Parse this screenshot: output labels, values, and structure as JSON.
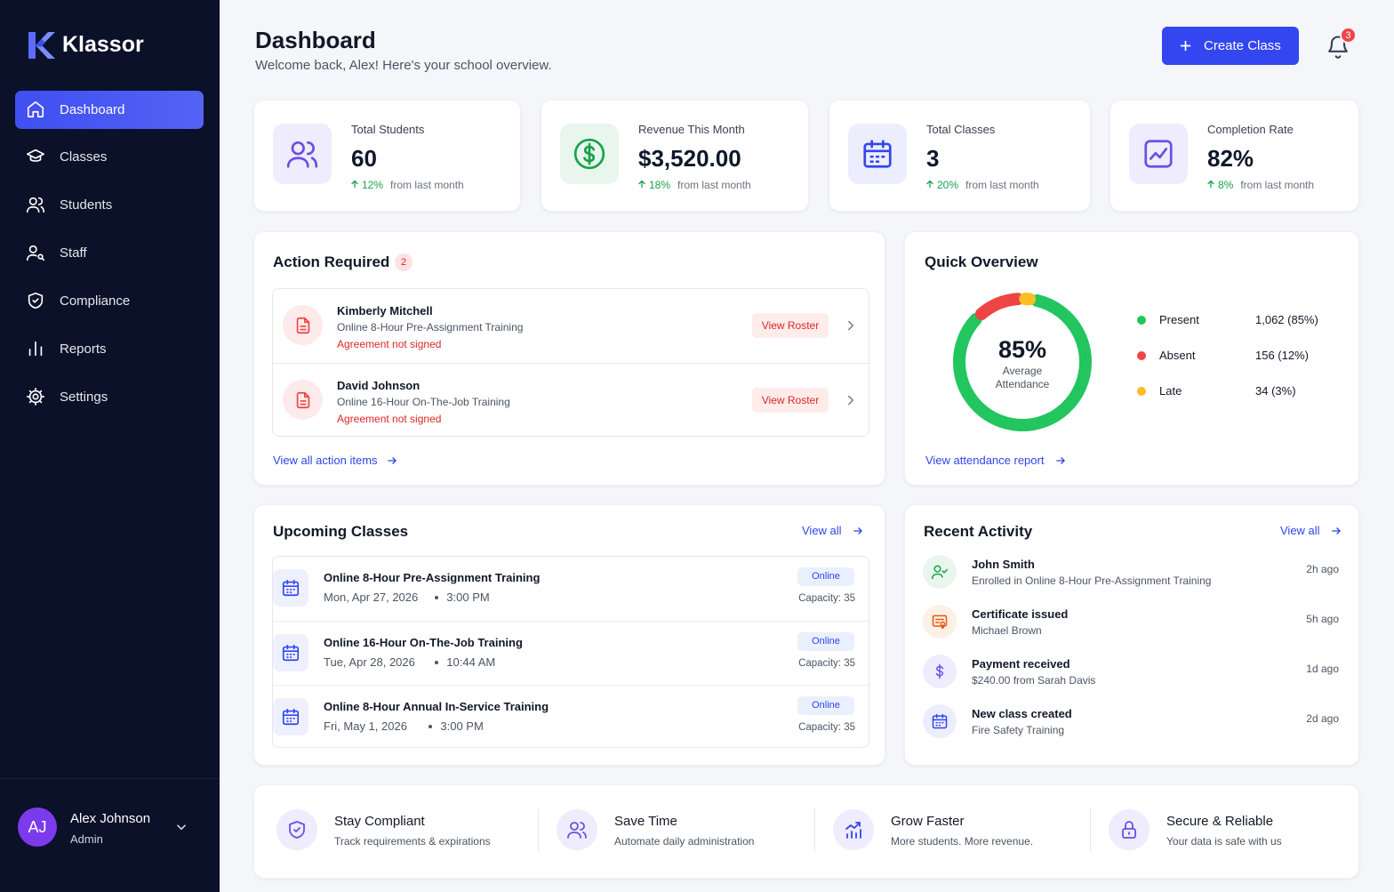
{
  "sidebar": {
    "brand": "Klassor",
    "nav": [
      "Dashboard",
      "Classes",
      "Students",
      "Staff",
      "Compliance",
      "Reports",
      "Settings"
    ],
    "user": {
      "initials": "AJ",
      "name": "Alex Johnson",
      "role": "Admin"
    }
  },
  "header": {
    "title": "Dashboard",
    "subtitle": "Welcome back, Alex! Here's your school overview.",
    "button": "Create Class",
    "notifications": "3"
  },
  "stats": [
    {
      "label": "Total Students",
      "value": "60",
      "change": "12%",
      "note": "from last month"
    },
    {
      "label": "Revenue This Month",
      "value": "$3,520.00",
      "change": "18%",
      "note": "from last month"
    },
    {
      "label": "Total Classes",
      "value": "3",
      "change": "20%",
      "note": "from last month"
    },
    {
      "label": "Completion Rate",
      "value": "82%",
      "change": "8%",
      "note": "from last month"
    }
  ],
  "action_required": {
    "title": "Action Required",
    "count": "2",
    "items": [
      {
        "name": "Kimberly Mitchell",
        "course": "Online 8-Hour Pre-Assignment Training",
        "status": "Agreement not signed",
        "button": "View Roster"
      },
      {
        "name": "David Johnson",
        "course": "Online 16-Hour On-The-Job Training",
        "status": "Agreement not signed",
        "button": "View Roster"
      }
    ],
    "link": "View all action items"
  },
  "quick_overview": {
    "title": "Quick Overview",
    "link": "View attendance report"
  },
  "chart_data": {
    "type": "donut",
    "center_value": "85%",
    "center_label": "Average Attendance",
    "categories": [
      "Present",
      "Absent",
      "Late"
    ],
    "values": [
      85,
      12,
      3
    ],
    "value_labels": [
      "1,062 (85%)",
      "156 (12%)",
      "34 (3%)"
    ],
    "colors": [
      "#22c55e",
      "#ef4444",
      "#fbbf24"
    ]
  },
  "upcoming_classes": {
    "title": "Upcoming Classes",
    "link": "View all",
    "items": [
      {
        "title": "Online 8-Hour Pre-Assignment Training",
        "date": "Mon, Apr 27, 2026",
        "time": "3:00 PM",
        "mode": "Online",
        "capacity": "Capacity: 35"
      },
      {
        "title": "Online 16-Hour On-The-Job Training",
        "date": "Tue, Apr 28, 2026",
        "time": "10:44 AM",
        "mode": "Online",
        "capacity": "Capacity: 35"
      },
      {
        "title": "Online 8-Hour Annual In-Service Training",
        "date": "Fri, May 1, 2026",
        "time": "3:00 PM",
        "mode": "Online",
        "capacity": "Capacity: 35"
      }
    ]
  },
  "recent_activity": {
    "title": "Recent Activity",
    "link": "View all",
    "items": [
      {
        "title": "John Smith",
        "detail": "Enrolled in Online 8-Hour Pre-Assignment Training",
        "time": "2h ago"
      },
      {
        "title": "Certificate issued",
        "detail": "Michael Brown",
        "time": "5h ago"
      },
      {
        "title": "Payment received",
        "detail": "$240.00 from Sarah Davis",
        "time": "1d ago"
      },
      {
        "title": "New class created",
        "detail": "Fire Safety Training",
        "time": "2d ago"
      }
    ]
  },
  "features": [
    {
      "title": "Stay Compliant",
      "text": "Track requirements & expirations"
    },
    {
      "title": "Save Time",
      "text": "Automate daily administration"
    },
    {
      "title": "Grow Faster",
      "text": "More students. More revenue."
    },
    {
      "title": "Secure & Reliable",
      "text": "Your data is safe with us"
    }
  ]
}
